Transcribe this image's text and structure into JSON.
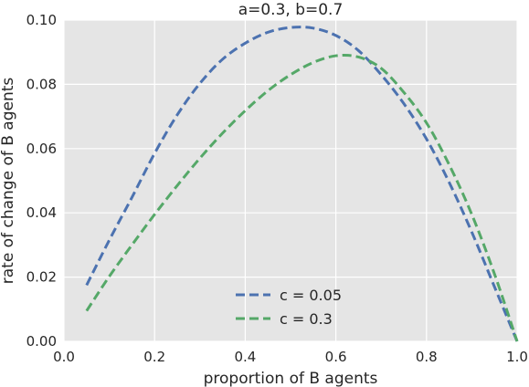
{
  "chart_data": {
    "type": "line",
    "title": "a=0.3, b=0.7",
    "xlabel": "proportion of B agents",
    "ylabel": "rate of change of B agents",
    "xlim": [
      0.0,
      1.0
    ],
    "ylim": [
      0.0,
      0.1
    ],
    "xticks": [
      "0.0",
      "0.2",
      "0.4",
      "0.6",
      "0.8",
      "1.0"
    ],
    "yticks": [
      "0.00",
      "0.02",
      "0.04",
      "0.06",
      "0.08",
      "0.10"
    ],
    "grid": true,
    "legend_position": "bottom-center",
    "x": [
      0.05,
      0.1,
      0.15,
      0.2,
      0.25,
      0.3,
      0.35,
      0.4,
      0.45,
      0.5,
      0.55,
      0.6,
      0.65,
      0.7,
      0.75,
      0.8,
      0.85,
      0.9,
      0.95,
      1.0
    ],
    "series": [
      {
        "name": "c = 0.05",
        "color": "#4c72b0",
        "style": "dashed",
        "values": [
          0.0175,
          0.0315,
          0.0448,
          0.0585,
          0.0705,
          0.0803,
          0.0878,
          0.0928,
          0.0962,
          0.0977,
          0.0975,
          0.0952,
          0.0905,
          0.083,
          0.074,
          0.063,
          0.0495,
          0.034,
          0.017,
          0.0
        ]
      },
      {
        "name": "c = 0.3",
        "color": "#55a868",
        "style": "dashed",
        "values": [
          0.0095,
          0.0202,
          0.03,
          0.0395,
          0.0485,
          0.057,
          0.0648,
          0.0718,
          0.078,
          0.083,
          0.0868,
          0.0889,
          0.0885,
          0.085,
          0.0775,
          0.068,
          0.055,
          0.0395,
          0.021,
          0.0
        ]
      }
    ]
  }
}
